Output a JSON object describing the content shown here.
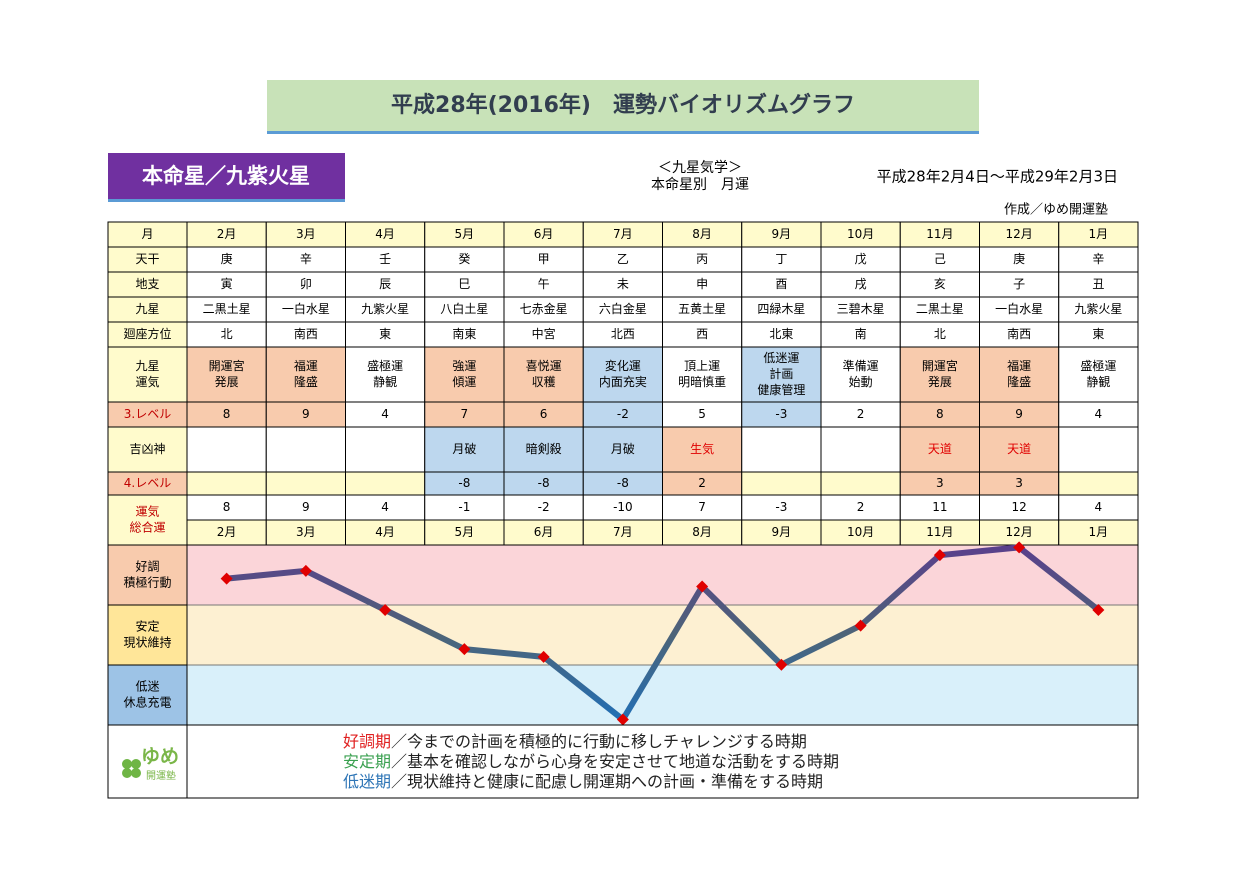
{
  "header": {
    "title": "平成28年(2016年)　運勢バイオリズムグラフ",
    "badge": "本命星／九紫火星",
    "subtitle": [
      "＜九星気学＞",
      "本命星別　月運"
    ],
    "period": "平成28年2月4日～平成29年2月3日",
    "author": "作成／ゆめ開運塾"
  },
  "table": {
    "rows": [
      {
        "label": "月",
        "cells": [
          "2月",
          "3月",
          "4月",
          "5月",
          "6月",
          "7月",
          "8月",
          "9月",
          "10月",
          "11月",
          "12月",
          "1月"
        ]
      },
      {
        "label": "天干",
        "cells": [
          "庚",
          "辛",
          "壬",
          "癸",
          "甲",
          "乙",
          "丙",
          "丁",
          "戊",
          "己",
          "庚",
          "辛"
        ]
      },
      {
        "label": "地支",
        "cells": [
          "寅",
          "卯",
          "辰",
          "巳",
          "午",
          "未",
          "申",
          "酉",
          "戌",
          "亥",
          "子",
          "丑"
        ]
      },
      {
        "label": "九星",
        "cells": [
          "二黒土星",
          "一白水星",
          "九紫火星",
          "八白土星",
          "七赤金星",
          "六白金星",
          "五黄土星",
          "四緑木星",
          "三碧木星",
          "二黒土星",
          "一白水星",
          "九紫火星"
        ]
      },
      {
        "label": "廻座方位",
        "cells": [
          "北",
          "南西",
          "東",
          "南東",
          "中宮",
          "北西",
          "西",
          "北東",
          "南",
          "北",
          "南西",
          "東"
        ]
      },
      {
        "label": [
          "九星",
          "運気"
        ],
        "cells": [
          [
            "開運宮",
            "発展"
          ],
          [
            "福運",
            "隆盛"
          ],
          [
            "盛極運",
            "静観"
          ],
          [
            "強運",
            "傾運"
          ],
          [
            "喜悦運",
            "収穫"
          ],
          [
            "変化運",
            "内面充実"
          ],
          [
            "頂上運",
            "明暗慎重"
          ],
          [
            "低迷運",
            "計画",
            "健康管理"
          ],
          [
            "準備運",
            "始動"
          ],
          [
            "開運宮",
            "発展"
          ],
          [
            "福運",
            "隆盛"
          ],
          [
            "盛極運",
            "静観"
          ]
        ]
      },
      {
        "label": "3.レベル",
        "cells": [
          8,
          9,
          4,
          7,
          6,
          -2,
          5,
          -3,
          2,
          8,
          9,
          4
        ]
      },
      {
        "label": "吉凶神",
        "cells": [
          null,
          null,
          null,
          "月破",
          "暗剣殺",
          "月破",
          "生気",
          null,
          null,
          "天道",
          "天道",
          null
        ]
      },
      {
        "label": "4.レベル",
        "cells": [
          null,
          null,
          null,
          -8,
          -8,
          -8,
          2,
          null,
          null,
          3,
          3,
          null
        ]
      },
      {
        "label": [
          "運気",
          "総合運"
        ],
        "cells": [
          8,
          9,
          4,
          -1,
          -2,
          -10,
          7,
          -3,
          2,
          11,
          12,
          4
        ]
      },
      {
        "cells": [
          "2月",
          "3月",
          "4月",
          "5月",
          "6月",
          "7月",
          "8月",
          "9月",
          "10月",
          "11月",
          "12月",
          "1月"
        ]
      }
    ]
  },
  "chart": {
    "ylim": [
      -10.7,
      12.3
    ],
    "zones": [
      [
        "好調",
        "積極行動"
      ],
      [
        "安定",
        "現状維持"
      ],
      [
        "低迷",
        "休息充電"
      ]
    ]
  },
  "legend": [
    {
      "term": "好調期",
      "text": "／今までの計画を積極的に行動に移しチャレンジする時期"
    },
    {
      "term": "安定期",
      "text": "／基本を確認しながら心身を安定させて地道な活動をする時期"
    },
    {
      "term": "低迷期",
      "text": "／現状維持と健康に配慮し開運期への計画・準備をする時期"
    }
  ],
  "logo": {
    "main": "ゆめ",
    "sub": "開運塾"
  }
}
